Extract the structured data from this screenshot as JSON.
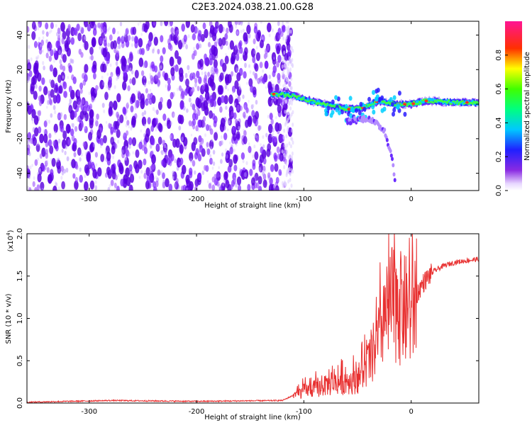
{
  "title": "C2E3.2024.038.21.00.G28",
  "chart_data": [
    {
      "type": "heatmap",
      "xlabel": "Height of straight line (km)",
      "ylabel": "Frequency (Hz)",
      "xlim": [
        -358,
        63
      ],
      "ylim": [
        -50,
        48
      ],
      "xticks": [
        -300,
        -200,
        -100,
        0
      ],
      "yticks": [
        -40,
        -20,
        0,
        20,
        40
      ],
      "grid": false,
      "colorbar": {
        "label": "Normalized spectral amplitude",
        "range": [
          0,
          1
        ],
        "ticks": [
          "0.0",
          "0.2",
          "0.4",
          "0.6",
          "0.8"
        ],
        "colormap": "rainbow (white-violet-blue-cyan-green-yellow-red-magenta)"
      },
      "noise_region_x": [
        -358,
        -120
      ],
      "ridge": [
        {
          "x": -130,
          "y": 6
        },
        {
          "x": -110,
          "y": 5
        },
        {
          "x": -95,
          "y": 2
        },
        {
          "x": -80,
          "y": 0
        },
        {
          "x": -60,
          "y": -3
        },
        {
          "x": -45,
          "y": -2
        },
        {
          "x": -30,
          "y": 2
        },
        {
          "x": -15,
          "y": 0
        },
        {
          "x": 0,
          "y": 0
        },
        {
          "x": 15,
          "y": 2
        },
        {
          "x": 40,
          "y": 1
        },
        {
          "x": 63,
          "y": 1
        }
      ],
      "branch": [
        {
          "x": -60,
          "y": -10
        },
        {
          "x": -40,
          "y": -8
        },
        {
          "x": -25,
          "y": -15
        },
        {
          "x": -18,
          "y": -30
        },
        {
          "x": -15,
          "y": -45
        }
      ]
    },
    {
      "type": "line",
      "xlabel": "Height of straight line (km)",
      "ylabel": "SNR (10 * v/v)",
      "y_multiplier": "(x10",
      "y_multiplier_exp": "4",
      "xlim": [
        -358,
        63
      ],
      "ylim": [
        0,
        2.0
      ],
      "xticks": [
        -300,
        -200,
        -100,
        0
      ],
      "yticks": [
        "0.0",
        "0.5",
        "1.0",
        "1.5",
        "2.0"
      ],
      "grid": false,
      "series": [
        {
          "color": "#e83030",
          "x": [
            -358,
            -280,
            -200,
            -120,
            -100,
            -70,
            -50,
            -40,
            -30,
            -20,
            -15,
            -10,
            0,
            10,
            20,
            30,
            40,
            50,
            63
          ],
          "y": [
            0.01,
            0.03,
            0.02,
            0.03,
            0.15,
            0.25,
            0.3,
            0.5,
            0.8,
            1.2,
            1.3,
            1.2,
            1.15,
            1.4,
            1.55,
            1.62,
            1.66,
            1.68,
            1.7
          ]
        }
      ]
    }
  ]
}
